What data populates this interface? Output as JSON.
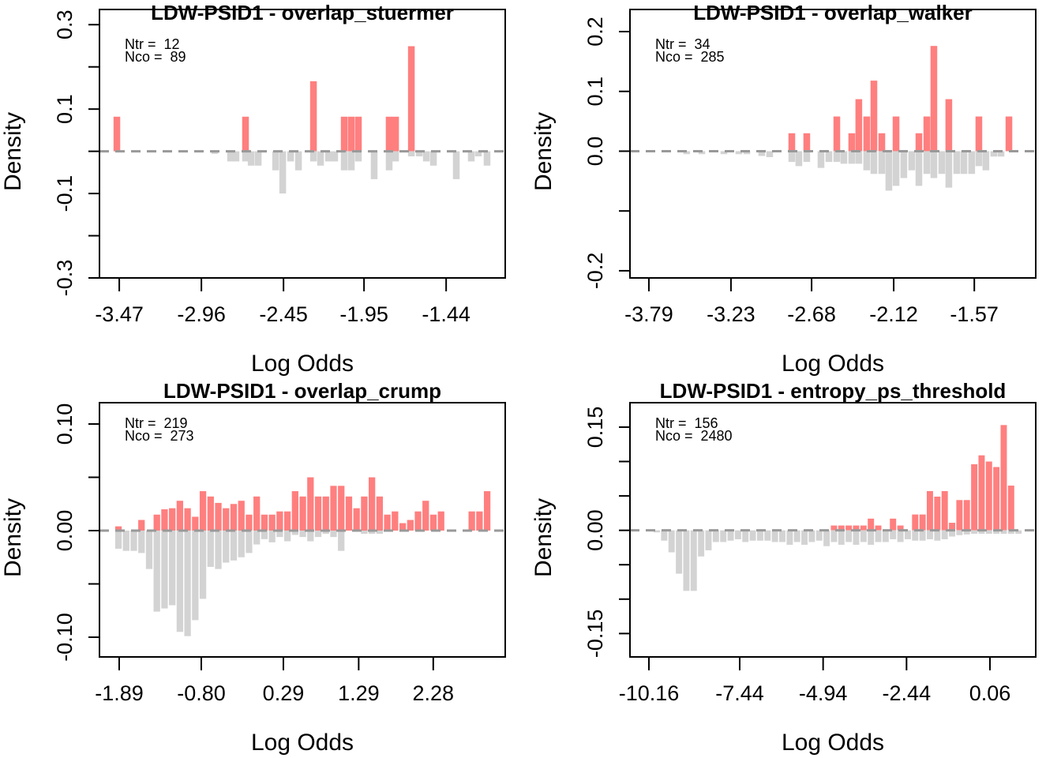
{
  "chart_data": [
    {
      "type": "bar",
      "title": "LDW-PSID1 - overlap_stuermer",
      "x_label": "Log Odds",
      "y_label": "Density",
      "annotations": [
        "Ntr =  12",
        "Nco =  89"
      ],
      "xlim": [
        -3.593,
        -1.073
      ],
      "ylim": [
        -0.3,
        0.336
      ],
      "xticks": [
        -3.47,
        -2.96,
        -2.45,
        -1.95,
        -1.44
      ],
      "yticks": [
        0.3,
        {
          "value": 0.2,
          "label": null
        },
        0.1,
        {
          "value": 0,
          "label": null
        },
        -0.1,
        {
          "value": -0.2,
          "label": null
        },
        -0.3
      ],
      "x": [
        -3.485,
        -2.877,
        -2.779,
        -2.745,
        -2.686,
        -2.651,
        -2.607,
        -2.499,
        -2.455,
        -2.406,
        -2.357,
        -2.264,
        -2.22,
        -2.171,
        -2.132,
        -2.073,
        -2.029,
        -1.985,
        -1.887,
        -1.794,
        -1.754,
        -1.656,
        -1.607,
        -1.563,
        -1.519,
        -1.377,
        -1.284,
        -1.24,
        -1.186
      ],
      "series": [
        {
          "color": "#ff7f7f",
          "values": [
            0.082,
            null,
            null,
            null,
            0.082,
            null,
            null,
            null,
            null,
            null,
            null,
            0.166,
            null,
            null,
            null,
            0.082,
            0.082,
            0.082,
            null,
            0.082,
            0.082,
            0.249,
            null,
            null,
            null,
            null,
            null,
            null,
            null
          ]
        },
        {
          "color": "#d3d3d3",
          "values": [
            null,
            -0.006,
            -0.024,
            -0.024,
            -0.024,
            -0.034,
            -0.034,
            -0.045,
            -0.1,
            -0.024,
            -0.045,
            -0.024,
            -0.034,
            -0.024,
            -0.024,
            -0.045,
            -0.045,
            -0.024,
            -0.066,
            -0.045,
            -0.024,
            -0.012,
            -0.012,
            -0.024,
            -0.034,
            -0.066,
            -0.024,
            -0.012,
            -0.034
          ]
        }
      ]
    },
    {
      "type": "bar",
      "title": "LDW-PSID1 - overlap_walker",
      "x_label": "Log Odds",
      "y_label": "Density",
      "annotations": [
        "Ntr =  34",
        "Nco =  285"
      ],
      "xlim": [
        -3.919,
        -1.151
      ],
      "ylim": [
        -0.212,
        0.237
      ],
      "xticks": [
        -3.79,
        -3.23,
        -2.68,
        -2.12,
        -1.57
      ],
      "yticks": [
        0.2,
        0.1,
        {
          "value": 0,
          "label": "0.0"
        },
        {
          "value": -0.1,
          "label": null
        },
        -0.2
      ],
      "x": [
        -3.532,
        -3.429,
        -3.278,
        -3.176,
        -3.122,
        -3.02,
        -2.966,
        -2.815,
        -2.767,
        -2.713,
        -2.616,
        -2.562,
        -2.508,
        -2.46,
        -2.406,
        -2.358,
        -2.304,
        -2.255,
        -2.201,
        -2.153,
        -2.104,
        -2.051,
        -1.997,
        -1.948,
        -1.894,
        -1.846,
        -1.792,
        -1.744,
        -1.69,
        -1.641,
        -1.588,
        -1.539,
        -1.491,
        -1.437,
        -1.388,
        -1.334
      ],
      "series": [
        {
          "color": "#ff7f7f",
          "values": [
            null,
            null,
            null,
            null,
            null,
            null,
            null,
            0.03,
            null,
            0.03,
            null,
            null,
            0.058,
            null,
            0.03,
            0.087,
            0.058,
            0.118,
            0.03,
            null,
            0.058,
            null,
            null,
            0.03,
            0.058,
            0.176,
            null,
            0.087,
            null,
            null,
            null,
            0.058,
            null,
            null,
            null,
            0.058
          ]
        },
        {
          "color": "#d3d3d3",
          "values": [
            -0.005,
            -0.005,
            -0.005,
            -0.005,
            -0.005,
            -0.008,
            -0.01,
            -0.018,
            -0.025,
            -0.018,
            -0.028,
            -0.018,
            -0.018,
            -0.021,
            -0.021,
            -0.021,
            -0.032,
            -0.038,
            -0.038,
            -0.066,
            -0.058,
            -0.045,
            -0.032,
            -0.058,
            -0.038,
            -0.045,
            -0.038,
            -0.061,
            -0.038,
            -0.038,
            -0.038,
            -0.025,
            -0.032,
            -0.009,
            -0.009,
            null
          ]
        }
      ]
    },
    {
      "type": "bar",
      "title": "LDW-PSID1 - overlap_crump",
      "x_label": "Log Odds",
      "y_label": "Density",
      "annotations": [
        "Ntr =  219",
        "Nco =  273"
      ],
      "xlim": [
        -2.152,
        3.236
      ],
      "ylim": [
        -0.1185,
        0.12
      ],
      "xticks": [
        -1.89,
        {
          "value": -0.8,
          "label": "-0.80"
        },
        0.29,
        1.29,
        2.28
      ],
      "yticks": [
        {
          "value": 0.1,
          "label": "0.10"
        },
        {
          "value": 0.05,
          "label": null
        },
        {
          "value": 0,
          "label": "0.00"
        },
        {
          "value": -0.05,
          "label": null
        },
        {
          "value": -0.1,
          "label": "-0.10"
        }
      ],
      "x": [
        -1.9,
        -1.798,
        -1.696,
        -1.594,
        -1.492,
        -1.39,
        -1.288,
        -1.186,
        -1.084,
        -0.982,
        -0.88,
        -0.778,
        -0.676,
        -0.574,
        -0.472,
        -0.37,
        -0.268,
        -0.166,
        -0.064,
        0.038,
        0.14,
        0.242,
        0.344,
        0.446,
        0.548,
        0.65,
        0.752,
        0.854,
        0.956,
        1.058,
        1.16,
        1.262,
        1.364,
        1.466,
        1.568,
        1.67,
        1.772,
        1.874,
        1.976,
        2.078,
        2.18,
        2.282,
        2.384,
        2.486,
        2.588,
        2.69,
        2.792,
        2.894,
        2.996
      ],
      "series": [
        {
          "color": "#ff7f7f",
          "values": [
            0.004,
            null,
            null,
            0.01,
            null,
            0.015,
            0.02,
            0.021,
            0.028,
            0.021,
            0.013,
            0.037,
            0.032,
            0.026,
            0.021,
            0.025,
            0.028,
            0.015,
            0.032,
            0.015,
            0.015,
            0.018,
            0.018,
            0.037,
            0.032,
            0.05,
            0.032,
            0.032,
            0.042,
            0.042,
            0.032,
            0.021,
            0.032,
            0.05,
            0.032,
            0.015,
            0.018,
            0.007,
            0.01,
            0.018,
            0.028,
            0.015,
            0.018,
            null,
            null,
            null,
            0.018,
            0.018,
            0.037
          ]
        },
        {
          "color": "#d3d3d3",
          "values": [
            -0.017,
            -0.019,
            -0.019,
            -0.021,
            -0.036,
            -0.076,
            -0.073,
            -0.07,
            -0.095,
            -0.099,
            -0.084,
            -0.064,
            -0.034,
            -0.036,
            -0.03,
            -0.028,
            -0.025,
            -0.021,
            -0.013,
            -0.008,
            -0.011,
            -0.006,
            -0.01,
            -0.004,
            -0.006,
            -0.01,
            -0.006,
            -0.003,
            -0.006,
            -0.019,
            null,
            null,
            -0.003,
            -0.003,
            -0.003,
            null,
            null,
            null,
            null,
            null,
            null,
            null,
            null,
            null,
            null,
            null,
            null,
            null,
            null
          ]
        }
      ]
    },
    {
      "type": "bar",
      "title": "LDW-PSID1 - entropy_ps_threshold",
      "x_label": "Log Odds",
      "y_label": "Density",
      "annotations": [
        "Ntr =  156",
        "Nco =  2480"
      ],
      "xlim": [
        -10.728,
        1.432
      ],
      "ylim": [
        -0.184,
        0.1855
      ],
      "xticks": [
        -10.16,
        -7.44,
        -4.94,
        -2.44,
        0.06
      ],
      "yticks": [
        0.15,
        {
          "value": 0.1,
          "label": null
        },
        {
          "value": 0.05,
          "label": null
        },
        {
          "value": 0,
          "label": "0.00"
        },
        {
          "value": -0.05,
          "label": null
        },
        {
          "value": -0.1,
          "label": null
        },
        -0.15
      ],
      "x": [
        -9.923,
        -9.702,
        -9.481,
        -9.259,
        -9.038,
        -8.817,
        -8.596,
        -8.375,
        -8.153,
        -7.932,
        -7.711,
        -7.49,
        -7.269,
        -7.047,
        -6.826,
        -6.605,
        -6.384,
        -6.163,
        -5.941,
        -5.72,
        -5.499,
        -5.278,
        -5.057,
        -4.835,
        -4.614,
        -4.393,
        -4.172,
        -3.951,
        -3.729,
        -3.508,
        -3.287,
        -3.066,
        -2.845,
        -2.623,
        -2.402,
        -2.181,
        -1.96,
        -1.739,
        -1.517,
        -1.296,
        -1.075,
        -0.854,
        -0.633,
        -0.411,
        -0.19,
        0.031,
        0.252,
        0.473,
        0.694,
        0.915
      ],
      "series": [
        {
          "color": "#ff7f7f",
          "values": [
            null,
            null,
            null,
            null,
            null,
            null,
            null,
            null,
            null,
            null,
            null,
            null,
            null,
            null,
            null,
            null,
            null,
            null,
            null,
            null,
            null,
            null,
            null,
            null,
            0.007,
            0.007,
            0.007,
            0.007,
            0.007,
            0.017,
            0.007,
            null,
            0.017,
            0.007,
            null,
            0.023,
            0.023,
            0.057,
            0.049,
            0.057,
            0.011,
            0.044,
            0.044,
            0.096,
            0.109,
            0.1,
            0.092,
            0.153,
            0.065,
            null
          ]
        },
        {
          "color": "#d3d3d3",
          "values": [
            -0.003,
            -0.015,
            -0.032,
            -0.063,
            -0.088,
            -0.088,
            -0.038,
            -0.029,
            -0.017,
            -0.017,
            -0.015,
            -0.013,
            -0.017,
            -0.015,
            -0.015,
            -0.015,
            -0.017,
            -0.017,
            -0.021,
            -0.017,
            -0.021,
            -0.017,
            -0.015,
            -0.023,
            -0.017,
            -0.021,
            -0.017,
            -0.021,
            -0.017,
            -0.021,
            -0.017,
            -0.017,
            -0.013,
            -0.017,
            -0.013,
            -0.015,
            -0.015,
            -0.013,
            -0.015,
            -0.013,
            -0.009,
            -0.007,
            -0.006,
            -0.005,
            -0.005,
            -0.005,
            -0.005,
            -0.005,
            -0.005,
            -0.005
          ]
        }
      ]
    }
  ]
}
